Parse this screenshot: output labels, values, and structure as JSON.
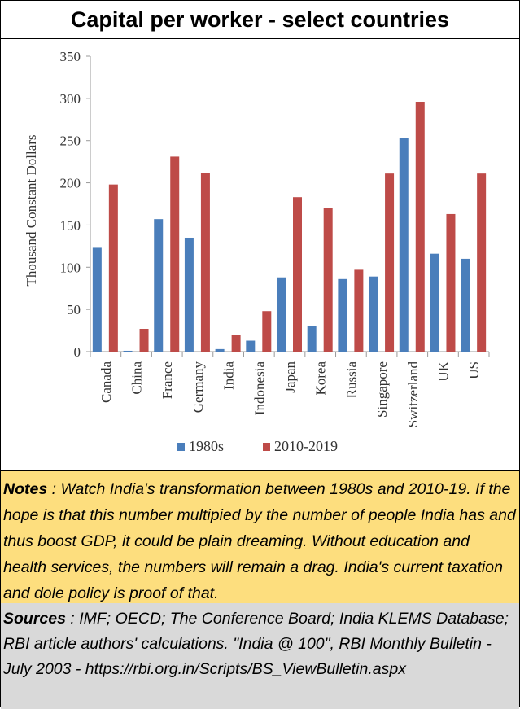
{
  "title": "Capital per worker - select countries",
  "chart_data": {
    "type": "bar",
    "ylabel": "Thousand Constant Dollars",
    "ylim": [
      0,
      350
    ],
    "yticks": [
      0,
      50,
      100,
      150,
      200,
      250,
      300,
      350
    ],
    "categories": [
      "Canada",
      "China",
      "France",
      "Germany",
      "India",
      "Indonesia",
      "Japan",
      "Korea",
      "Russia",
      "Singapore",
      "Switzerland",
      "UK",
      "US"
    ],
    "series": [
      {
        "name": "1980s",
        "color": "#4a7ebb",
        "values": [
          123,
          1,
          157,
          135,
          3,
          13,
          88,
          30,
          86,
          89,
          253,
          116,
          110
        ]
      },
      {
        "name": "2010-2019",
        "color": "#be4b48",
        "values": [
          198,
          27,
          231,
          212,
          20,
          48,
          183,
          170,
          97,
          211,
          296,
          163,
          211
        ]
      }
    ],
    "grid": false,
    "legend": "bottom"
  },
  "notes": {
    "label": "Notes",
    "text": " : Watch India's transformation between 1980s and 2010-19.  If the hope is that this number multipied by the number of people India has and thus boost GDP, it could be plain dreaming.  Without education and health services, the numbers will remain a drag.  India's current taxation and dole policy is proof of that."
  },
  "sources": {
    "label": "Sources",
    "text": " : IMF; OECD; The Conference Board; India KLEMS Database; RBI article authors' calculations. \"India @ 100\", RBI Monthly Bulletin - July 2003 - https://rbi.org.in/Scripts/BS_ViewBulletin.aspx"
  }
}
